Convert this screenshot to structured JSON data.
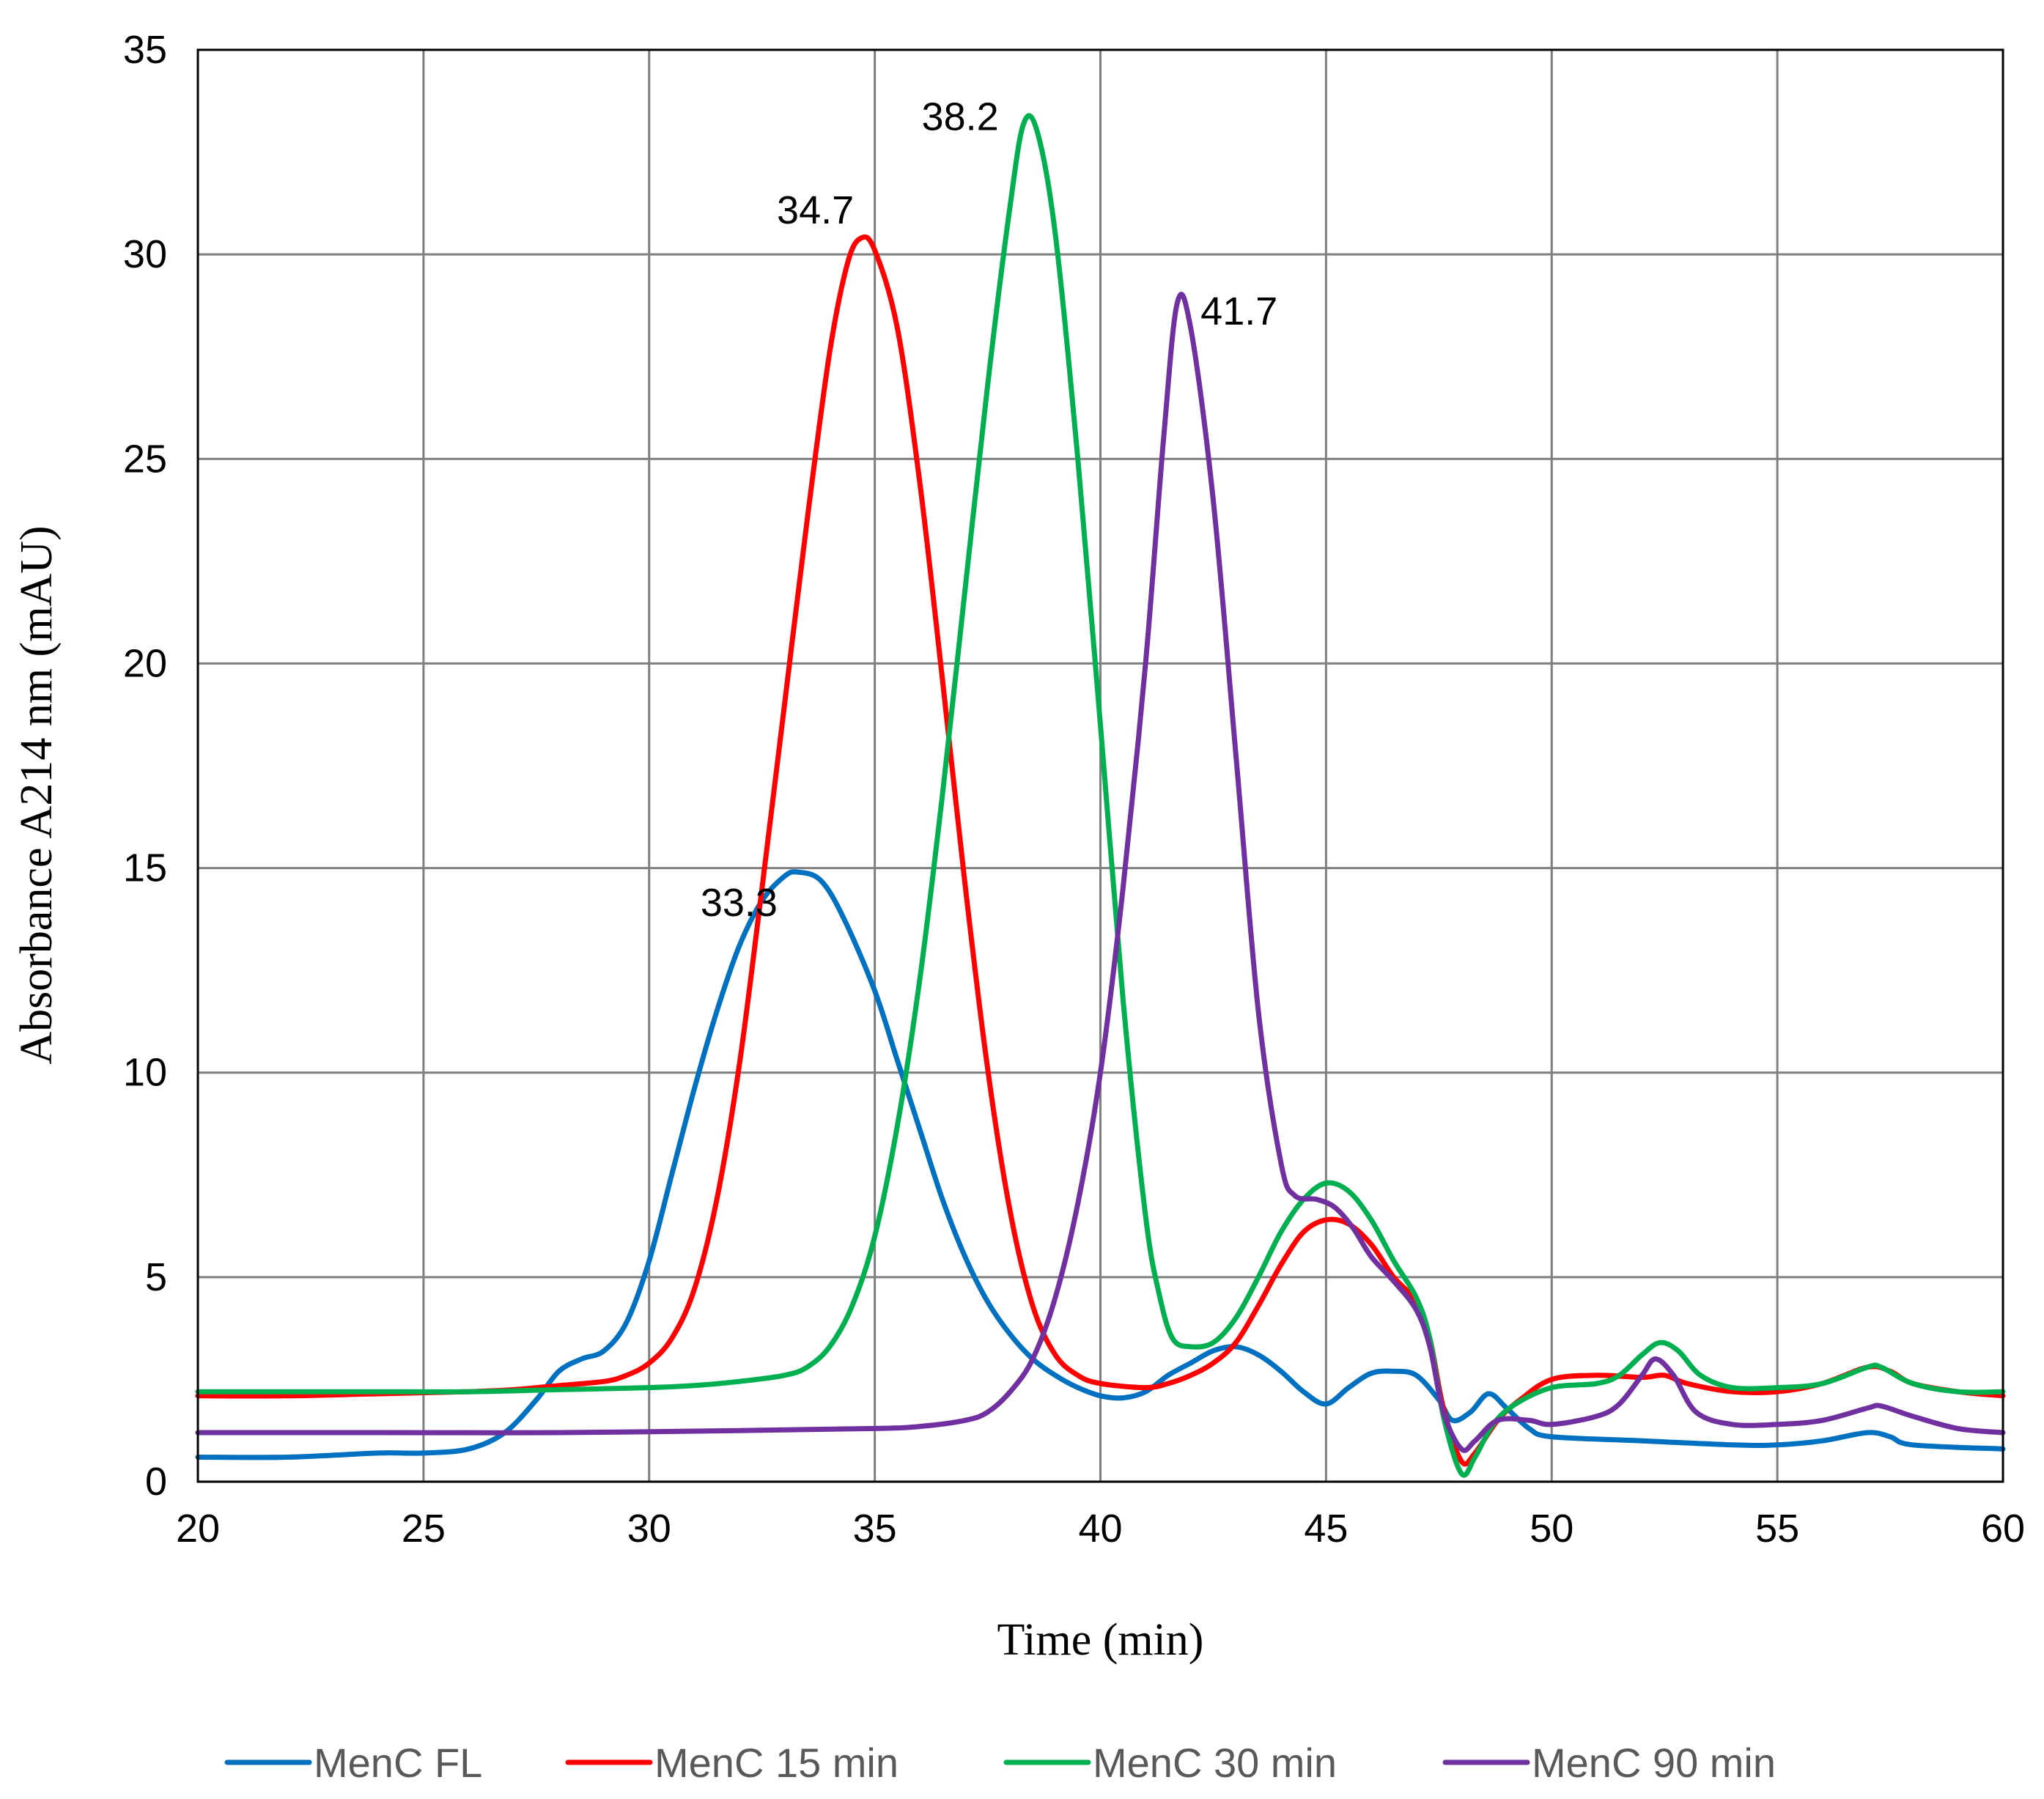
{
  "chart_data": {
    "type": "line",
    "title": "",
    "xlabel": "Time (min)",
    "ylabel": "Absorbance A214 nm (mAU)",
    "xlim": [
      20,
      60
    ],
    "ylim": [
      0,
      35
    ],
    "xticks": [
      "20",
      "25",
      "30",
      "35",
      "40",
      "45",
      "50",
      "55",
      "60"
    ],
    "yticks": [
      "0",
      "5",
      "10",
      "15",
      "20",
      "25",
      "30",
      "35"
    ],
    "grid": true,
    "legend_position": "bottom",
    "series": [
      {
        "name": "MenC FL",
        "color": "#0070C0",
        "points": [
          [
            20,
            0.6
          ],
          [
            22,
            0.6
          ],
          [
            24,
            0.7
          ],
          [
            25,
            0.7
          ],
          [
            26,
            0.8
          ],
          [
            26.8,
            1.2
          ],
          [
            27.5,
            2.0
          ],
          [
            28,
            2.7
          ],
          [
            28.5,
            3.0
          ],
          [
            29,
            3.2
          ],
          [
            29.5,
            3.9
          ],
          [
            30,
            5.4
          ],
          [
            30.5,
            7.5
          ],
          [
            31,
            9.6
          ],
          [
            31.5,
            11.5
          ],
          [
            32,
            13.1
          ],
          [
            32.5,
            14.2
          ],
          [
            33,
            14.8
          ],
          [
            33.3,
            14.9
          ],
          [
            33.8,
            14.7
          ],
          [
            34.3,
            13.8
          ],
          [
            35,
            12.0
          ],
          [
            35.5,
            10.3
          ],
          [
            36,
            8.6
          ],
          [
            36.5,
            6.9
          ],
          [
            37,
            5.5
          ],
          [
            37.5,
            4.4
          ],
          [
            38,
            3.6
          ],
          [
            38.5,
            3.0
          ],
          [
            39,
            2.6
          ],
          [
            39.5,
            2.3
          ],
          [
            40,
            2.1
          ],
          [
            40.5,
            2.05
          ],
          [
            41,
            2.2
          ],
          [
            41.5,
            2.6
          ],
          [
            42,
            2.9
          ],
          [
            42.5,
            3.2
          ],
          [
            43,
            3.3
          ],
          [
            43.5,
            3.1
          ],
          [
            44,
            2.7
          ],
          [
            44.5,
            2.2
          ],
          [
            45,
            1.9
          ],
          [
            45.5,
            2.3
          ],
          [
            46,
            2.65
          ],
          [
            46.5,
            2.7
          ],
          [
            47,
            2.6
          ],
          [
            47.5,
            2.0
          ],
          [
            47.8,
            1.5
          ],
          [
            48.2,
            1.7
          ],
          [
            48.6,
            2.15
          ],
          [
            49,
            1.8
          ],
          [
            49.5,
            1.3
          ],
          [
            50,
            1.1
          ],
          [
            52,
            1.0
          ],
          [
            54,
            0.9
          ],
          [
            55,
            0.9
          ],
          [
            56,
            1.0
          ],
          [
            57,
            1.2
          ],
          [
            57.5,
            1.1
          ],
          [
            58,
            0.9
          ],
          [
            60,
            0.8
          ]
        ]
      },
      {
        "name": "MenC 15 min",
        "color": "#FF0000",
        "points": [
          [
            20,
            2.1
          ],
          [
            22,
            2.1
          ],
          [
            24,
            2.15
          ],
          [
            26,
            2.2
          ],
          [
            27,
            2.25
          ],
          [
            28,
            2.35
          ],
          [
            29,
            2.45
          ],
          [
            29.5,
            2.6
          ],
          [
            30,
            2.9
          ],
          [
            30.5,
            3.5
          ],
          [
            31,
            4.7
          ],
          [
            31.5,
            6.9
          ],
          [
            32,
            10.2
          ],
          [
            32.5,
            14.5
          ],
          [
            33,
            19.0
          ],
          [
            33.5,
            23.5
          ],
          [
            34,
            27.6
          ],
          [
            34.4,
            29.8
          ],
          [
            34.7,
            30.4
          ],
          [
            35,
            30.1
          ],
          [
            35.5,
            28.2
          ],
          [
            36,
            24.4
          ],
          [
            36.5,
            19.6
          ],
          [
            37,
            14.6
          ],
          [
            37.5,
            10.1
          ],
          [
            38,
            6.6
          ],
          [
            38.5,
            4.3
          ],
          [
            39,
            3.1
          ],
          [
            39.5,
            2.6
          ],
          [
            40,
            2.4
          ],
          [
            41,
            2.3
          ],
          [
            41.5,
            2.4
          ],
          [
            42,
            2.6
          ],
          [
            42.5,
            2.9
          ],
          [
            43,
            3.4
          ],
          [
            43.5,
            4.3
          ],
          [
            44,
            5.3
          ],
          [
            44.5,
            6.1
          ],
          [
            45,
            6.4
          ],
          [
            45.5,
            6.3
          ],
          [
            46,
            5.8
          ],
          [
            46.5,
            5.0
          ],
          [
            47,
            4.4
          ],
          [
            47.3,
            3.5
          ],
          [
            47.6,
            1.8
          ],
          [
            48,
            0.5
          ],
          [
            48.3,
            0.7
          ],
          [
            48.8,
            1.5
          ],
          [
            49.3,
            2.0
          ],
          [
            50,
            2.5
          ],
          [
            51,
            2.6
          ],
          [
            52,
            2.55
          ],
          [
            52.5,
            2.6
          ],
          [
            53,
            2.4
          ],
          [
            54,
            2.2
          ],
          [
            55,
            2.2
          ],
          [
            56,
            2.4
          ],
          [
            57,
            2.8
          ],
          [
            57.5,
            2.7
          ],
          [
            58,
            2.4
          ],
          [
            59,
            2.2
          ],
          [
            60,
            2.1
          ]
        ]
      },
      {
        "name": "MenC 30 min",
        "color": "#00B050",
        "points": [
          [
            20,
            2.2
          ],
          [
            22,
            2.2
          ],
          [
            24,
            2.2
          ],
          [
            26,
            2.2
          ],
          [
            28,
            2.25
          ],
          [
            30,
            2.3
          ],
          [
            31,
            2.35
          ],
          [
            32,
            2.45
          ],
          [
            33,
            2.6
          ],
          [
            33.5,
            2.8
          ],
          [
            34,
            3.3
          ],
          [
            34.5,
            4.3
          ],
          [
            35,
            6.0
          ],
          [
            35.5,
            8.7
          ],
          [
            36,
            12.3
          ],
          [
            36.5,
            16.8
          ],
          [
            37,
            21.8
          ],
          [
            37.5,
            26.8
          ],
          [
            38,
            31.2
          ],
          [
            38.3,
            33.2
          ],
          [
            38.6,
            33.0
          ],
          [
            39,
            30.5
          ],
          [
            39.5,
            25.0
          ],
          [
            40,
            18.5
          ],
          [
            40.5,
            11.8
          ],
          [
            41,
            6.5
          ],
          [
            41.3,
            4.6
          ],
          [
            41.6,
            3.5
          ],
          [
            42,
            3.3
          ],
          [
            42.5,
            3.4
          ],
          [
            43,
            4.0
          ],
          [
            43.5,
            5.0
          ],
          [
            44,
            6.1
          ],
          [
            44.5,
            6.9
          ],
          [
            45,
            7.3
          ],
          [
            45.5,
            7.1
          ],
          [
            46,
            6.4
          ],
          [
            46.5,
            5.4
          ],
          [
            47,
            4.5
          ],
          [
            47.3,
            3.5
          ],
          [
            47.6,
            1.6
          ],
          [
            48,
            0.2
          ],
          [
            48.3,
            0.6
          ],
          [
            48.7,
            1.4
          ],
          [
            49.2,
            1.9
          ],
          [
            50,
            2.3
          ],
          [
            51,
            2.4
          ],
          [
            51.5,
            2.6
          ],
          [
            52,
            3.1
          ],
          [
            52.4,
            3.4
          ],
          [
            52.8,
            3.2
          ],
          [
            53.3,
            2.6
          ],
          [
            54,
            2.3
          ],
          [
            55,
            2.3
          ],
          [
            56,
            2.4
          ],
          [
            57,
            2.8
          ],
          [
            57.3,
            2.8
          ],
          [
            58,
            2.4
          ],
          [
            59,
            2.2
          ],
          [
            60,
            2.2
          ]
        ]
      },
      {
        "name": "MenC 90 min",
        "color": "#7030A0",
        "points": [
          [
            20,
            1.2
          ],
          [
            24,
            1.2
          ],
          [
            28,
            1.2
          ],
          [
            32,
            1.25
          ],
          [
            35,
            1.3
          ],
          [
            36,
            1.35
          ],
          [
            37,
            1.5
          ],
          [
            37.5,
            1.7
          ],
          [
            38,
            2.2
          ],
          [
            38.5,
            3.0
          ],
          [
            39,
            4.5
          ],
          [
            39.5,
            6.8
          ],
          [
            40,
            10.0
          ],
          [
            40.5,
            14.5
          ],
          [
            41,
            20.0
          ],
          [
            41.4,
            25.5
          ],
          [
            41.7,
            28.8
          ],
          [
            42,
            28.2
          ],
          [
            42.5,
            24.0
          ],
          [
            43,
            17.8
          ],
          [
            43.5,
            11.5
          ],
          [
            44,
            7.8
          ],
          [
            44.3,
            7.0
          ],
          [
            44.8,
            6.9
          ],
          [
            45.2,
            6.7
          ],
          [
            45.6,
            6.2
          ],
          [
            46,
            5.5
          ],
          [
            46.5,
            4.9
          ],
          [
            47,
            4.2
          ],
          [
            47.3,
            3.3
          ],
          [
            47.6,
            1.7
          ],
          [
            48,
            0.8
          ],
          [
            48.3,
            1.0
          ],
          [
            48.8,
            1.5
          ],
          [
            49.5,
            1.5
          ],
          [
            50,
            1.4
          ],
          [
            51,
            1.6
          ],
          [
            51.5,
            1.9
          ],
          [
            52,
            2.6
          ],
          [
            52.3,
            3.0
          ],
          [
            52.7,
            2.6
          ],
          [
            53.2,
            1.7
          ],
          [
            54,
            1.4
          ],
          [
            55,
            1.4
          ],
          [
            56,
            1.5
          ],
          [
            57,
            1.8
          ],
          [
            57.3,
            1.85
          ],
          [
            58,
            1.6
          ],
          [
            59,
            1.3
          ],
          [
            60,
            1.2
          ]
        ]
      }
    ],
    "annotations": [
      {
        "text": "33.3",
        "x": 33.3,
        "y": 14.9,
        "anchor": "left"
      },
      {
        "text": "34.7",
        "x": 34.7,
        "y": 30.4,
        "anchor": "above-left"
      },
      {
        "text": "38.2",
        "x": 38.2,
        "y": 33.4,
        "anchor": "left"
      },
      {
        "text": "41.7",
        "x": 41.7,
        "y": 29.0,
        "anchor": "right"
      }
    ]
  }
}
